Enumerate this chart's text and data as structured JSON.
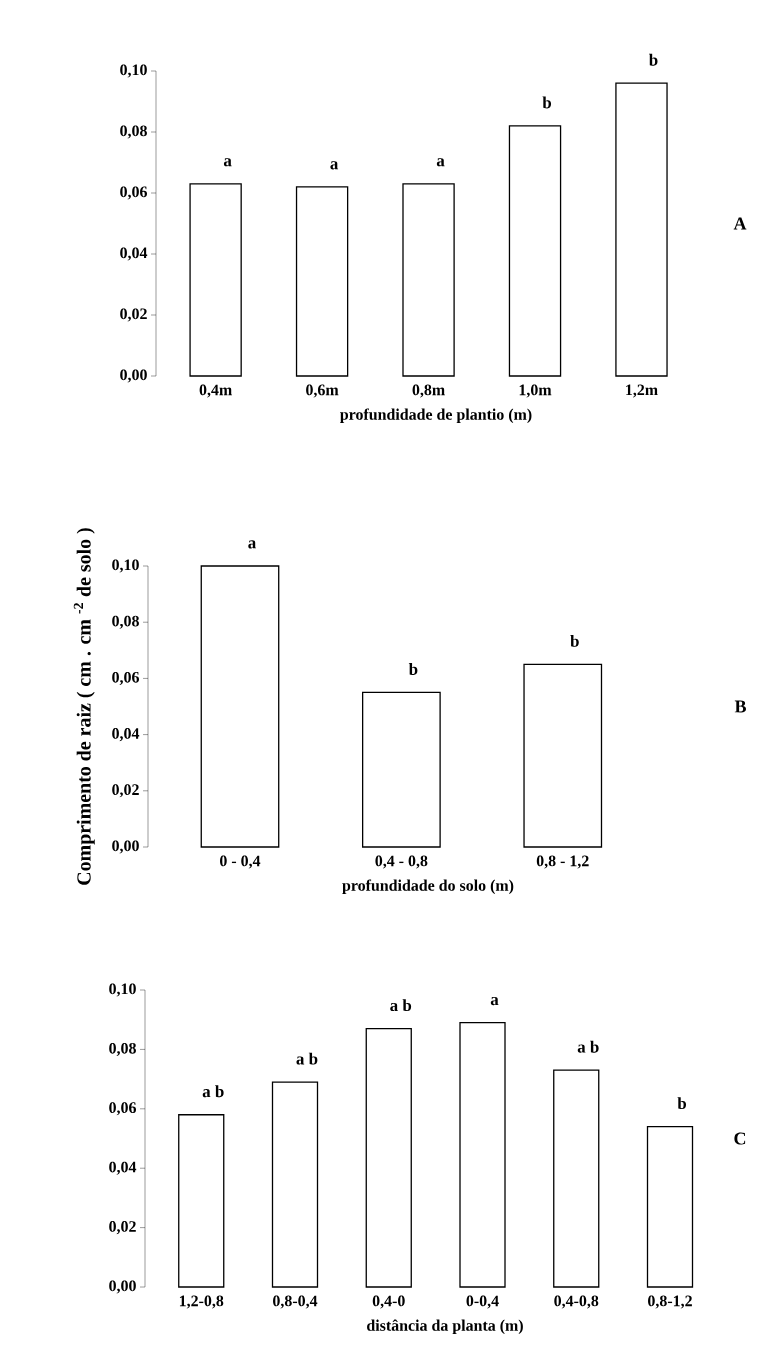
{
  "chart_data": [
    {
      "type": "bar",
      "xlabel": "profundidade de plantio (m)",
      "categories": [
        "0,4m",
        "0,6m",
        "0,8m",
        "1,0m",
        "1,2m"
      ],
      "values": [
        0.063,
        0.062,
        0.063,
        0.082,
        0.096
      ],
      "color": "#ffffff",
      "ylim": [
        0,
        0.1
      ],
      "yticks": [
        {
          "value": 0,
          "label": "0,00"
        },
        {
          "value": 0.02,
          "label": "0,02"
        },
        {
          "value": 0.04,
          "label": "0,04"
        },
        {
          "value": 0.06,
          "label": "0,06"
        },
        {
          "value": 0.08,
          "label": "0,08"
        },
        {
          "value": 0.1,
          "label": "0,10"
        }
      ],
      "annotations": [
        {
          "text": "a",
          "x": "0,4m",
          "y": 0.063
        },
        {
          "text": "a",
          "x": "0,6m",
          "y": 0.062
        },
        {
          "text": "a",
          "x": "0,8m",
          "y": 0.063
        },
        {
          "text": "b",
          "x": "1,0m",
          "y": 0.082
        },
        {
          "text": "b",
          "x": "1,2m",
          "y": 0.096
        },
        "A"
      ]
    },
    {
      "type": "bar",
      "xlabel": "profundidade do solo (m)",
      "ylabel": "Comprimento de raiz ( cm . cm $^{-2}$ de solo )",
      "categories": [
        "0 - 0,4",
        "0,4 - 0,8",
        "0,8 - 1,2"
      ],
      "values": [
        0.1,
        0.055,
        0.065
      ],
      "color": "#ffffff",
      "ylim": [
        0,
        0.1
      ],
      "yticks": [
        {
          "value": 0,
          "label": "0,00"
        },
        {
          "value": 0.02,
          "label": "0,02"
        },
        {
          "value": 0.04,
          "label": "0,04"
        },
        {
          "value": 0.06,
          "label": "0,06"
        },
        {
          "value": 0.08,
          "label": "0,08"
        },
        {
          "value": 0.1,
          "label": "0,10"
        }
      ],
      "annotations": [
        {
          "text": "a",
          "x": "0 - 0,4",
          "y": 0.1
        },
        {
          "text": "b",
          "x": "0,4 - 0,8",
          "y": 0.055
        },
        {
          "text": "b",
          "x": "0,8 - 1,2",
          "y": 0.065
        },
        "B"
      ]
    },
    {
      "type": "bar",
      "xlabel": "distância da planta (m)",
      "categories": [
        "1,2-0,8",
        "0,8-0,4",
        "0,4-0",
        "0-0,4",
        "0,4-0,8",
        "0,8-1,2"
      ],
      "values": [
        0.058,
        0.069,
        0.087,
        0.089,
        0.073,
        0.054
      ],
      "color": "#ffffff",
      "ylim": [
        0,
        0.1
      ],
      "yticks": [
        {
          "value": 0,
          "label": "0,00"
        },
        {
          "value": 0.02,
          "label": "0,02"
        },
        {
          "value": 0.04,
          "label": "0,04"
        },
        {
          "value": 0.06,
          "label": "0,06"
        },
        {
          "value": 0.08,
          "label": "0,08"
        },
        {
          "value": 0.1,
          "label": "0,10"
        }
      ],
      "annotations": [
        {
          "text": "a b",
          "x": "1,2-0,8",
          "y": 0.058
        },
        {
          "text": "a b",
          "x": "0,8-0,4",
          "y": 0.069
        },
        {
          "text": "a b",
          "x": "0,4-0",
          "y": 0.087
        },
        {
          "text": "a",
          "x": "0-0,4",
          "y": 0.089
        },
        {
          "text": "a b",
          "x": "0,4-0,8",
          "y": 0.073
        },
        {
          "text": "b",
          "x": "0,8-1,2",
          "y": 0.054
        },
        "C"
      ]
    }
  ]
}
